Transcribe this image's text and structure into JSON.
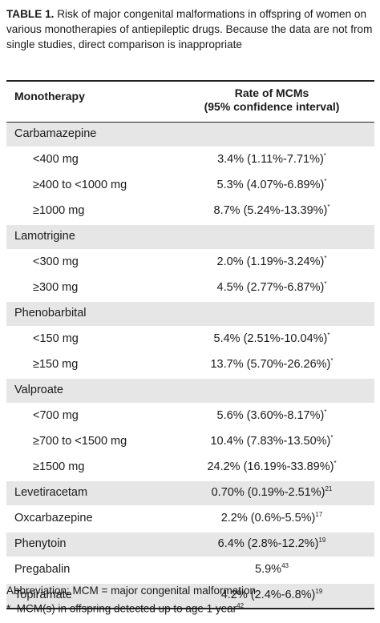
{
  "caption": {
    "lead": "TABLE 1.",
    "text": " Risk of major congenital malformations in offspring of women on various monotherapies of antiepileptic drugs. Because the data are not from single studies, direct comparison is inappropriate"
  },
  "header": {
    "col1": "Monotherapy",
    "col2_line1": "Rate of MCMs",
    "col2_line2": "(95% confidence interval)"
  },
  "rows": [
    {
      "name": "Carbamazepine",
      "value": "",
      "sup": ""
    },
    {
      "name": "<400 mg",
      "value": "3.4% (1.11%-7.71%)",
      "sup": "*"
    },
    {
      "name": "≥400 to <1000 mg",
      "value": "5.3% (4.07%-6.89%)",
      "sup": "*"
    },
    {
      "name": "≥1000 mg",
      "value": "8.7% (5.24%-13.39%)",
      "sup": "*"
    },
    {
      "name": "Lamotrigine",
      "value": "",
      "sup": ""
    },
    {
      "name": "<300 mg",
      "value": "2.0% (1.19%-3.24%)",
      "sup": "*"
    },
    {
      "name": "≥300 mg",
      "value": "4.5% (2.77%-6.87%)",
      "sup": "*"
    },
    {
      "name": "Phenobarbital",
      "value": "",
      "sup": ""
    },
    {
      "name": "<150 mg",
      "value": "5.4% (2.51%-10.04%)",
      "sup": "*"
    },
    {
      "name": "≥150 mg",
      "value": "13.7% (5.70%-26.26%)",
      "sup": "*"
    },
    {
      "name": "Valproate",
      "value": "",
      "sup": ""
    },
    {
      "name": "<700 mg",
      "value": "5.6% (3.60%-8.17%)",
      "sup": "*"
    },
    {
      "name": "≥700 to <1500 mg",
      "value": "10.4% (7.83%-13.50%)",
      "sup": "*"
    },
    {
      "name": "≥1500 mg",
      "value": "24.2% (16.19%-33.89%)",
      "sup": "*"
    },
    {
      "name": "Levetiracetam",
      "value": "0.70% (0.19%-2.51%)",
      "sup": "21"
    },
    {
      "name": "Oxcarbazepine",
      "value": "2.2% (0.6%-5.5%)",
      "sup": "17"
    },
    {
      "name": "Phenytoin",
      "value": "6.4% (2.8%-12.2%)",
      "sup": "19"
    },
    {
      "name": "Pregabalin",
      "value": "5.9%",
      "sup": "43"
    },
    {
      "name": "Topiramate",
      "value": "4.2% (2.4%-6.8%)",
      "sup": "19"
    }
  ],
  "footnotes": {
    "abbreviation": "Abbreviation: MCM = major congenital malformation",
    "star_mark": "*",
    "star_text": "MCM(s) in offspring detected up to age 1 year",
    "star_sup": "42"
  }
}
